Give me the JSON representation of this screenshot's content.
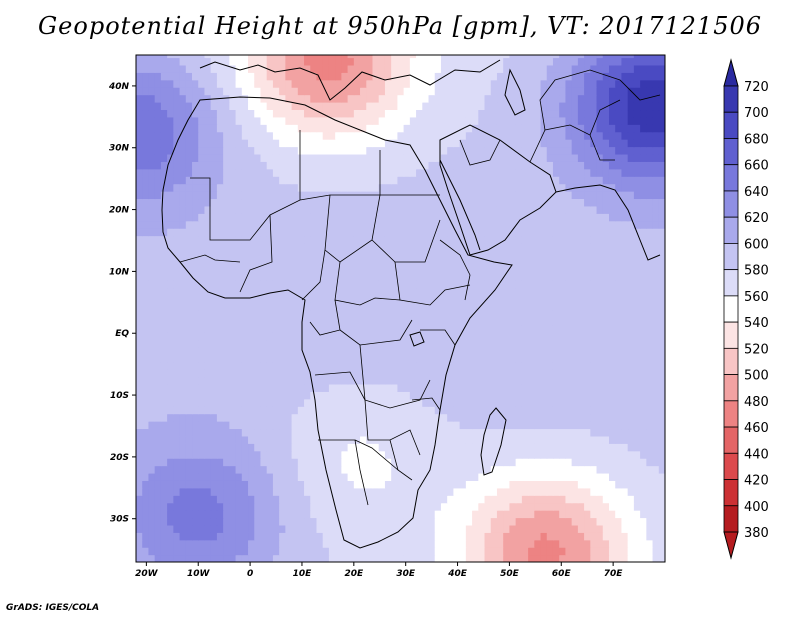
{
  "title": "Geopotential Height at 950hPa [gpm], VT: 2017121506",
  "footer": "GrADS: IGES/COLA",
  "colors": {
    "frame": "#000000",
    "land_border": "#000000",
    "scale": [
      "#b51c20",
      "#cc3134",
      "#dc4a4d",
      "#e46566",
      "#ed8383",
      "#f2a2a2",
      "#f8c5c5",
      "#fce4e4",
      "#ffffff",
      "#dcdcf8",
      "#c4c4f2",
      "#a9a9ec",
      "#8f8fe4",
      "#7878dc",
      "#6060d0",
      "#4a4ac2",
      "#3838b0",
      "#2a2aa0"
    ]
  },
  "chart_data": {
    "type": "heatmap",
    "title": "Geopotential Height at 950hPa [gpm], VT: 2017121506",
    "variable": "Geopotential Height",
    "level": "950hPa",
    "units": "gpm",
    "valid_time": "2017121506",
    "lon_range": [
      -22,
      80
    ],
    "lat_range": [
      -37,
      45
    ],
    "x_ticks": [
      "20W",
      "10W",
      "0",
      "10E",
      "20E",
      "30E",
      "40E",
      "50E",
      "60E",
      "70E"
    ],
    "x_tick_values": [
      -20,
      -10,
      0,
      10,
      20,
      30,
      40,
      50,
      60,
      70
    ],
    "y_ticks": [
      "40N",
      "30N",
      "20N",
      "10N",
      "EQ",
      "10S",
      "20S",
      "30S"
    ],
    "y_tick_values": [
      40,
      30,
      20,
      10,
      0,
      -10,
      -20,
      -30
    ],
    "colorbar_levels": [
      380,
      400,
      420,
      440,
      460,
      480,
      500,
      520,
      540,
      560,
      580,
      600,
      620,
      640,
      660,
      680,
      700,
      720
    ],
    "colorbar_labels": [
      "720",
      "700",
      "680",
      "660",
      "640",
      "620",
      "600",
      "580",
      "560",
      "540",
      "520",
      "500",
      "480",
      "460",
      "440",
      "420",
      "400",
      "380"
    ],
    "field_centers": [
      {
        "name": "mediterranean-low",
        "lon": 15,
        "lat": 44,
        "value": 470
      },
      {
        "name": "central-asia-high",
        "lon": 78,
        "lat": 37,
        "value": 710
      },
      {
        "name": "atlantic-high",
        "lon": -22,
        "lat": 33,
        "value": 650
      },
      {
        "name": "south-atlantic-high",
        "lon": -10,
        "lat": -30,
        "value": 640
      },
      {
        "name": "indian-ocean-low",
        "lon": 57,
        "lat": -35,
        "value": 470
      },
      {
        "name": "namibia-low",
        "lon": 21,
        "lat": -20,
        "value": 545
      }
    ]
  }
}
